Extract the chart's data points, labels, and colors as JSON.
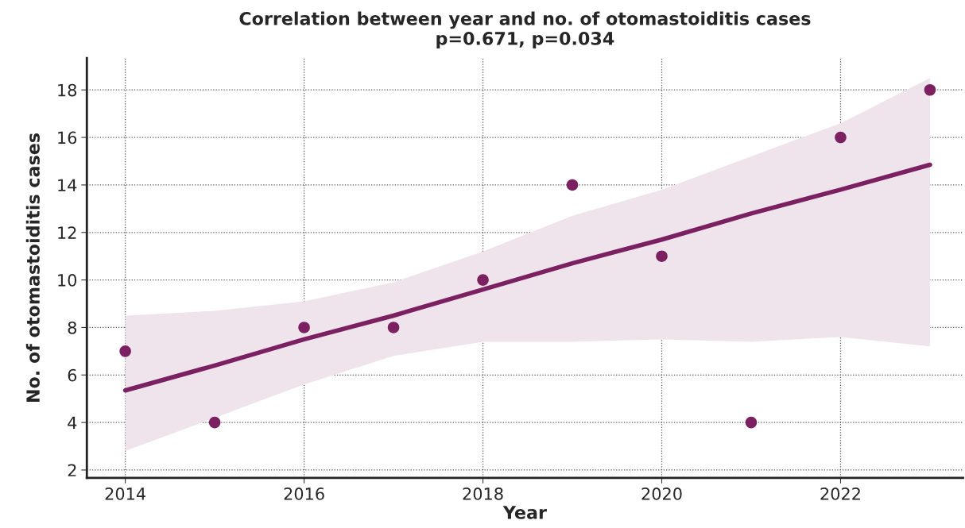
{
  "chart_data": {
    "type": "scatter",
    "title": "Correlation between year and no. of otomastoiditis cases\np=0.671, p=0.034",
    "xlabel": "Year",
    "ylabel": "No. of otomastoiditis cases",
    "x": [
      2014,
      2015,
      2016,
      2017,
      2018,
      2019,
      2020,
      2021,
      2022,
      2023
    ],
    "series": [
      {
        "color": "#7b2060",
        "marker": "circle",
        "values": [
          7,
          4,
          8,
          8,
          10,
          14,
          11,
          4,
          16,
          18
        ]
      },
      {
        "type": "line",
        "marker": "none",
        "color": "#7b2060",
        "x": [
          2014,
          2015,
          2016,
          2017,
          2018,
          2019,
          2020,
          2021,
          2022,
          2023
        ],
        "values": [
          5.35,
          6.4,
          7.5,
          8.5,
          9.6,
          10.7,
          11.7,
          12.8,
          13.8,
          14.85
        ],
        "lower": [
          2.8,
          4.2,
          5.6,
          6.8,
          7.4,
          7.4,
          7.5,
          7.4,
          7.6,
          7.2
        ],
        "upper": [
          8.5,
          8.7,
          9.1,
          9.9,
          11.2,
          12.7,
          13.8,
          15.2,
          16.6,
          18.5
        ]
      }
    ],
    "xlim": [
      2013.57,
      2023.37
    ],
    "ylim": [
      1.67,
      19.34
    ],
    "xticks": [
      2014,
      2016,
      2018,
      2020,
      2022
    ],
    "yticks": [
      2,
      4,
      6,
      8,
      10,
      12,
      14,
      16,
      18
    ],
    "grid": true,
    "line_style": "solid"
  }
}
